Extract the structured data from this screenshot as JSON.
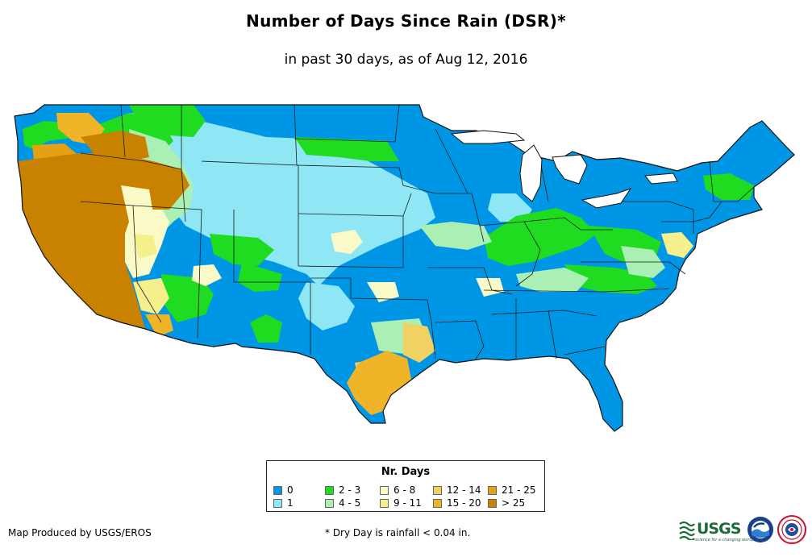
{
  "title": "Number of Days Since Rain (DSR)*",
  "subtitle": "in past 30 days, as of Aug 12, 2016",
  "legend": {
    "title": "Nr. Days",
    "items": [
      {
        "label": "0",
        "color": "#0096e6"
      },
      {
        "label": "1",
        "color": "#8fe6f5"
      },
      {
        "label": "2 - 3",
        "color": "#20dc20"
      },
      {
        "label": "4 - 5",
        "color": "#aaf0b4"
      },
      {
        "label": "6 - 8",
        "color": "#fafac8"
      },
      {
        "label": "9 - 11",
        "color": "#f5f08c"
      },
      {
        "label": "12 - 14",
        "color": "#f0d264"
      },
      {
        "label": "15 - 20",
        "color": "#f0b428"
      },
      {
        "label": "21 - 25",
        "color": "#e6a014"
      },
      {
        "label": "> 25",
        "color": "#c88200"
      }
    ]
  },
  "credit": "Map Produced by USGS/EROS",
  "footnote": "* Dry Day is rainfall < 0.04 in.",
  "logos": {
    "usgs": "USGS",
    "usgs_tagline": "science for a changing world",
    "noaa": "NOAA",
    "nws": "National Weather Service"
  }
}
